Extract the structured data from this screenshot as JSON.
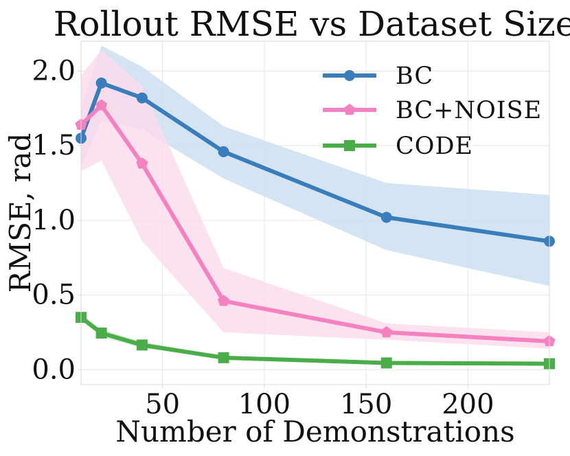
{
  "chart_data": {
    "type": "line",
    "title": "Rollout RMSE vs Dataset Size",
    "xlabel": "Number of Demonstrations",
    "ylabel": "RMSE, rad",
    "xlim": [
      10,
      240
    ],
    "ylim": [
      -0.1,
      2.2
    ],
    "xticks": [
      50,
      100,
      150,
      200
    ],
    "xtick_labels": [
      "50",
      "100",
      "150",
      "200"
    ],
    "yticks": [
      0.0,
      0.5,
      1.0,
      1.5,
      2.0
    ],
    "ytick_labels": [
      "0.0",
      "0.5",
      "1.0",
      "1.5",
      "2.0"
    ],
    "grid": true,
    "legend_position": "top-right",
    "x": [
      10,
      20,
      40,
      80,
      160,
      240
    ],
    "series": [
      {
        "name": "BC",
        "color": "#3a7dbb",
        "band_color": "#cddff0",
        "marker": "circle",
        "values": [
          1.55,
          1.92,
          1.82,
          1.46,
          1.02,
          0.86
        ],
        "lower": [
          1.36,
          1.67,
          1.61,
          1.28,
          0.8,
          0.56
        ],
        "upper": [
          1.74,
          2.17,
          2.03,
          1.63,
          1.25,
          1.17
        ]
      },
      {
        "name": "BC+NOISE",
        "color": "#f481c0",
        "band_color": "#fcdcec",
        "marker": "pentagon",
        "values": [
          1.64,
          1.77,
          1.38,
          0.46,
          0.25,
          0.19
        ],
        "lower": [
          1.33,
          1.4,
          0.86,
          0.25,
          0.2,
          0.14
        ],
        "upper": [
          1.97,
          2.14,
          1.9,
          0.68,
          0.31,
          0.25
        ]
      },
      {
        "name": "CODE",
        "color": "#4aad4a",
        "band_color": "#c9e8c9",
        "marker": "square",
        "values": [
          0.35,
          0.245,
          0.165,
          0.08,
          0.045,
          0.04
        ],
        "lower": [
          0.33,
          0.22,
          0.145,
          0.07,
          0.04,
          0.035
        ],
        "upper": [
          0.37,
          0.27,
          0.185,
          0.09,
          0.05,
          0.045
        ]
      }
    ]
  }
}
